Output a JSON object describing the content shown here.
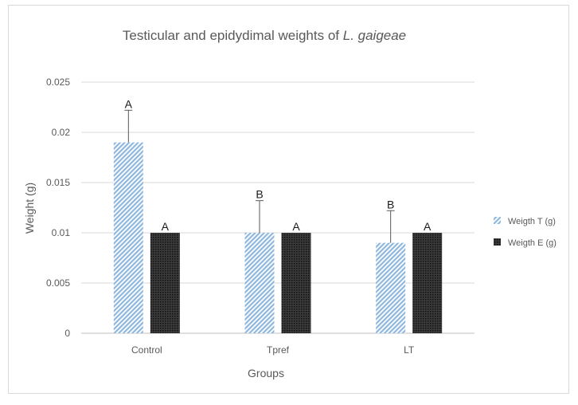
{
  "chart_data": {
    "type": "bar",
    "title_prefix": "Testicular and epidydimal weights of ",
    "title_species": "L. gaigeae",
    "xlabel": "Groups",
    "ylabel": "Weight (g)",
    "categories": [
      "Control",
      "Tpref",
      "LT"
    ],
    "ylim": [
      0,
      0.025
    ],
    "yticks": [
      0,
      0.005,
      0.01,
      0.015,
      0.02,
      0.025
    ],
    "ytick_labels": [
      "0",
      "0.005",
      "0.01",
      "0.015",
      "0.02",
      "0.025"
    ],
    "grid": true,
    "legend_position": "right",
    "series": [
      {
        "name": "Weigth T (g)",
        "values": [
          0.019,
          0.01,
          0.009
        ],
        "errors": [
          0.0032,
          0.0032,
          0.0032
        ],
        "significance": [
          "A",
          "B",
          "B"
        ],
        "color": "#9dc3e6",
        "pattern": "diagonal-hatch"
      },
      {
        "name": "Weigth E (g)",
        "values": [
          0.01,
          0.01,
          0.01
        ],
        "errors": [
          0,
          0,
          0
        ],
        "significance": [
          "A",
          "A",
          "A"
        ],
        "color": "#262626",
        "pattern": "dense-dots"
      }
    ]
  }
}
